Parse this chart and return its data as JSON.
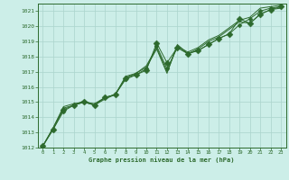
{
  "background_color": "#cceee8",
  "line_color": "#2d6a2d",
  "marker_color": "#2d6a2d",
  "grid_color": "#aad4cc",
  "xlabel": "Graphe pression niveau de la mer (hPa)",
  "ylim": [
    1012,
    1021.5
  ],
  "xlim": [
    -0.5,
    23.5
  ],
  "yticks": [
    1012,
    1013,
    1014,
    1015,
    1016,
    1017,
    1018,
    1019,
    1020,
    1021
  ],
  "xticks": [
    0,
    1,
    2,
    3,
    4,
    5,
    6,
    7,
    8,
    9,
    10,
    11,
    12,
    13,
    14,
    15,
    16,
    17,
    18,
    19,
    20,
    21,
    22,
    23
  ],
  "series": [
    [
      1012.1,
      1013.2,
      1014.4,
      1014.8,
      1015.0,
      1014.8,
      1015.3,
      1015.5,
      1016.5,
      1016.8,
      1017.2,
      1018.7,
      1017.2,
      1018.6,
      1018.2,
      1018.4,
      1018.8,
      1019.2,
      1019.5,
      1020.1,
      1020.5,
      1021.0,
      1021.2,
      1021.3
    ],
    [
      1012.1,
      1013.3,
      1014.6,
      1014.8,
      1015.1,
      1014.8,
      1015.2,
      1015.5,
      1016.7,
      1016.9,
      1017.3,
      1018.5,
      1016.9,
      1018.8,
      1018.2,
      1018.5,
      1019.0,
      1019.3,
      1019.8,
      1020.3,
      1020.2,
      1020.8,
      1021.1,
      1021.2
    ],
    [
      1012.1,
      1013.3,
      1014.7,
      1014.9,
      1015.0,
      1014.9,
      1015.3,
      1015.5,
      1016.6,
      1016.9,
      1017.4,
      1018.6,
      1017.0,
      1018.7,
      1018.3,
      1018.6,
      1019.1,
      1019.4,
      1019.9,
      1020.4,
      1020.6,
      1021.2,
      1021.3,
      1021.4
    ],
    [
      1012.1,
      1013.2,
      1014.5,
      1014.8,
      1015.0,
      1014.8,
      1015.3,
      1015.5,
      1016.6,
      1016.8,
      1017.1,
      1018.9,
      1017.6,
      1018.6,
      1018.2,
      1018.4,
      1018.8,
      1019.2,
      1019.5,
      1020.5,
      1020.2,
      1020.8,
      1021.1,
      1021.3
    ]
  ],
  "marker_sizes": [
    2.5,
    0,
    0,
    3.5
  ],
  "has_markers": [
    true,
    false,
    false,
    true
  ],
  "linewidths": [
    0.7,
    0.7,
    0.7,
    0.7
  ]
}
